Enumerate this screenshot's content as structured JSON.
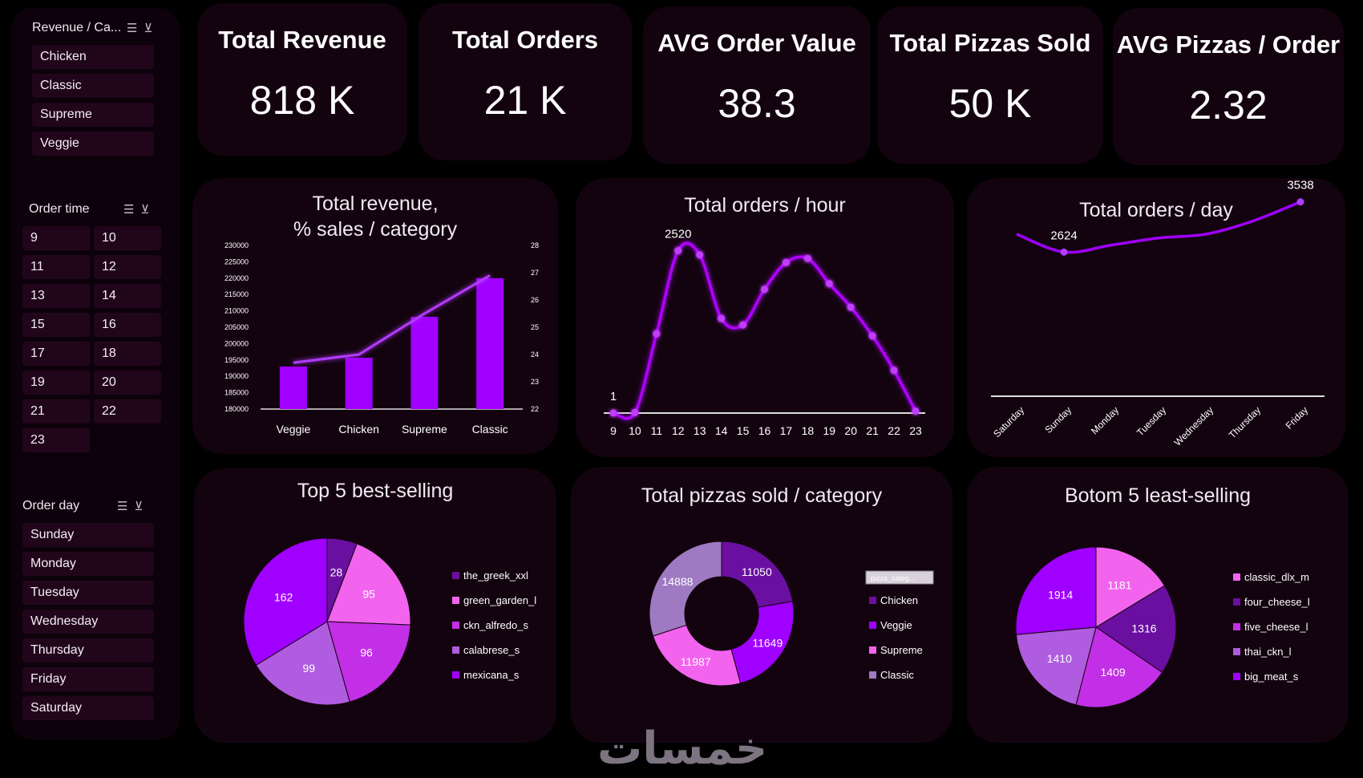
{
  "colors": {
    "accent": "#a000ff",
    "dark_purple": "#6a0fa0",
    "pink": "#f264ee",
    "magenta": "#c22fe6",
    "lavender": "#b05ce0",
    "grey_purple": "#9f7ac2",
    "panel": "#13030f"
  },
  "slicers": {
    "category": {
      "title": "Revenue / Ca...",
      "items": [
        "Chicken",
        "Classic",
        "Supreme",
        "Veggie"
      ]
    },
    "order_time": {
      "title": "Order time",
      "items": [
        "9",
        "10",
        "11",
        "12",
        "13",
        "14",
        "15",
        "16",
        "17",
        "18",
        "19",
        "20",
        "21",
        "22",
        "23"
      ]
    },
    "order_day": {
      "title": "Order day",
      "items": [
        "Sunday",
        "Monday",
        "Tuesday",
        "Wednesday",
        "Thursday",
        "Friday",
        "Saturday"
      ]
    },
    "sort_icon": "multi-select-icon",
    "clear_icon": "clear-filter-icon"
  },
  "kpis": [
    {
      "title": "Total Revenue",
      "value": "818 K"
    },
    {
      "title": "Total Orders",
      "value": "21 K"
    },
    {
      "title": "AVG Order Value",
      "value": "38.3"
    },
    {
      "title": "Total Pizzas Sold",
      "value": "50 K"
    },
    {
      "title": "AVG Pizzas / Order",
      "value": "2.32"
    }
  ],
  "chart_data": [
    {
      "id": "revenue_category",
      "type": "bar",
      "title_line1": "Total revenue,",
      "title_line2": "% sales / category",
      "categories": [
        "Veggie",
        "Chicken",
        "Supreme",
        "Classic"
      ],
      "values": [
        193000,
        195700,
        208200,
        220000
      ],
      "ylim": [
        180000,
        230000
      ],
      "yticks": [
        "180000",
        "185000",
        "190000",
        "195000",
        "200000",
        "205000",
        "210000",
        "215000",
        "220000",
        "225000",
        "230000"
      ],
      "y2_values": [
        23.7,
        24.0,
        25.5,
        26.9
      ],
      "y2lim": [
        22,
        28
      ],
      "y2ticks": [
        "22",
        "23",
        "24",
        "25",
        "26",
        "27",
        "28"
      ]
    },
    {
      "id": "orders_hour",
      "type": "line",
      "title": "Total orders / hour",
      "x": [
        "9",
        "10",
        "11",
        "12",
        "13",
        "14",
        "15",
        "16",
        "17",
        "18",
        "19",
        "20",
        "21",
        "22",
        "23"
      ],
      "values": [
        1,
        8,
        1231,
        2520,
        2455,
        1468,
        1368,
        1920,
        2336,
        2399,
        2009,
        1642,
        1198,
        663,
        28
      ],
      "ylim": [
        0,
        2800
      ],
      "labels": [
        {
          "index": 0,
          "text": "1"
        },
        {
          "index": 3,
          "text": "2520"
        }
      ]
    },
    {
      "id": "orders_day",
      "type": "line",
      "title": "Total orders / day",
      "x": [
        "Saturday",
        "Sunday",
        "Monday",
        "Tuesday",
        "Wednesday",
        "Thursday",
        "Friday"
      ],
      "values": [
        2950,
        2624,
        2750,
        2880,
        2950,
        3190,
        3538
      ],
      "ylim": [
        0,
        4000
      ],
      "labels": [
        {
          "index": 1,
          "text": "2624"
        },
        {
          "index": 6,
          "text": "3538"
        }
      ]
    },
    {
      "id": "top5",
      "type": "pie",
      "title": "Top 5 best-selling",
      "labels": [
        "the_greek_xxl",
        "green_garden_l",
        "ckn_alfredo_s",
        "calabrese_s",
        "mexicana_s"
      ],
      "values": [
        28,
        95,
        96,
        99,
        162
      ],
      "colors": [
        "#6a0fa0",
        "#f264ee",
        "#c22fe6",
        "#b05ce0",
        "#a000ff"
      ]
    },
    {
      "id": "pizzas_category",
      "type": "pie",
      "title": "Total pizzas sold / category",
      "legend_header": "pizza_categ...",
      "labels": [
        "Chicken",
        "Veggie",
        "Supreme",
        "Classic"
      ],
      "values": [
        11050,
        11649,
        11987,
        14888
      ],
      "colors": [
        "#6a0fa0",
        "#a000ff",
        "#f264ee",
        "#9f7ac2"
      ]
    },
    {
      "id": "bottom5",
      "type": "pie",
      "title": "Botom 5 least-selling",
      "labels": [
        "classic_dlx_m",
        "four_cheese_l",
        "five_cheese_l",
        "thai_ckn_l",
        "big_meat_s"
      ],
      "values": [
        1181,
        1316,
        1409,
        1410,
        1914
      ],
      "colors": [
        "#f264ee",
        "#6a0fa0",
        "#c22fe6",
        "#b05ce0",
        "#a000ff"
      ]
    }
  ],
  "watermark": "خمسات"
}
